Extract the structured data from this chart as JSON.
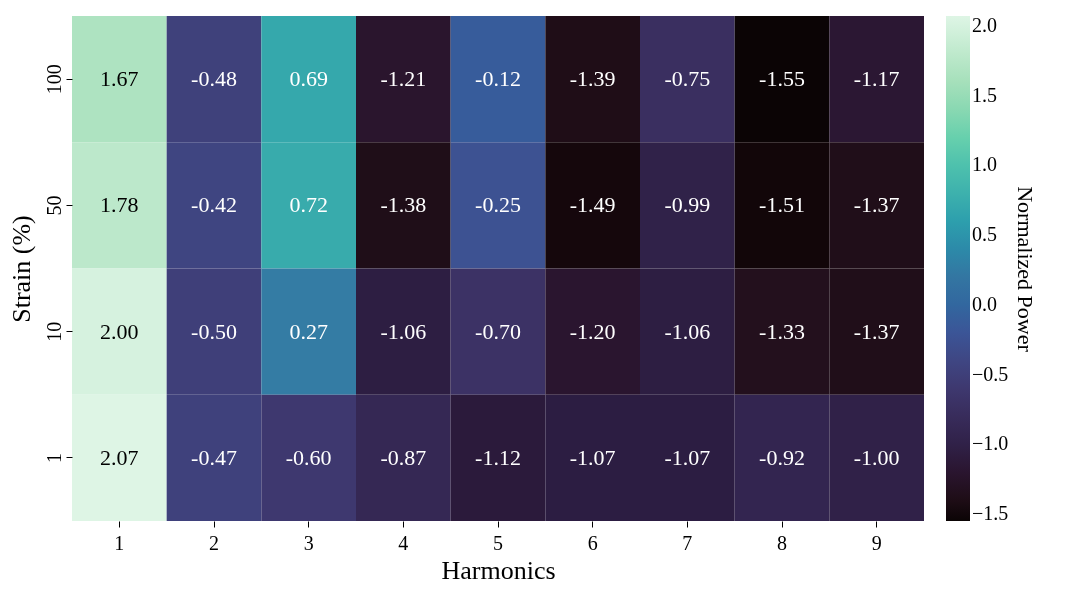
{
  "chart_data": {
    "type": "heatmap",
    "xlabel": "Harmonics",
    "ylabel": "Strain (%)",
    "clabel": "Normalized Power",
    "categories": [
      "1",
      "2",
      "3",
      "4",
      "5",
      "6",
      "7",
      "8",
      "9"
    ],
    "y_categories": [
      "100",
      "50",
      "10",
      "1"
    ],
    "cells": [
      [
        1.67,
        -0.48,
        0.69,
        -1.21,
        -0.12,
        -1.39,
        -0.75,
        -1.55,
        -1.17
      ],
      [
        1.78,
        -0.42,
        0.72,
        -1.38,
        -0.25,
        -1.49,
        -0.99,
        -1.51,
        -1.37
      ],
      [
        2.0,
        -0.5,
        0.27,
        -1.06,
        -0.7,
        -1.2,
        -1.06,
        -1.33,
        -1.37
      ],
      [
        2.07,
        -0.47,
        -0.6,
        -0.87,
        -1.12,
        -1.07,
        -1.07,
        -0.92,
        -1.0
      ]
    ],
    "cell_labels": [
      [
        "1.67",
        "-0.48",
        "0.69",
        "-1.21",
        "-0.12",
        "-1.39",
        "-0.75",
        "-1.55",
        "-1.17"
      ],
      [
        "1.78",
        "-0.42",
        "0.72",
        "-1.38",
        "-0.25",
        "-1.49",
        "-0.99",
        "-1.51",
        "-1.37"
      ],
      [
        "2.00",
        "-0.50",
        "0.27",
        "-1.06",
        "-0.70",
        "-1.20",
        "-1.06",
        "-1.33",
        "-1.37"
      ],
      [
        "2.07",
        "-0.47",
        "-0.60",
        "-0.87",
        "-1.12",
        "-1.07",
        "-1.07",
        "-0.92",
        "-1.00"
      ]
    ],
    "clim": [
      -1.55,
      2.07
    ],
    "cticks": [
      {
        "value": -1.5,
        "label": "−1.5"
      },
      {
        "value": -1.0,
        "label": "−1.0"
      },
      {
        "value": -0.5,
        "label": "−0.5"
      },
      {
        "value": 0,
        "label": "0.0"
      },
      0.5,
      {
        "value": 1.0,
        "label": "1.0"
      },
      1.5,
      {
        "value": 2.0,
        "label": "2.0"
      }
    ],
    "grid": false
  }
}
